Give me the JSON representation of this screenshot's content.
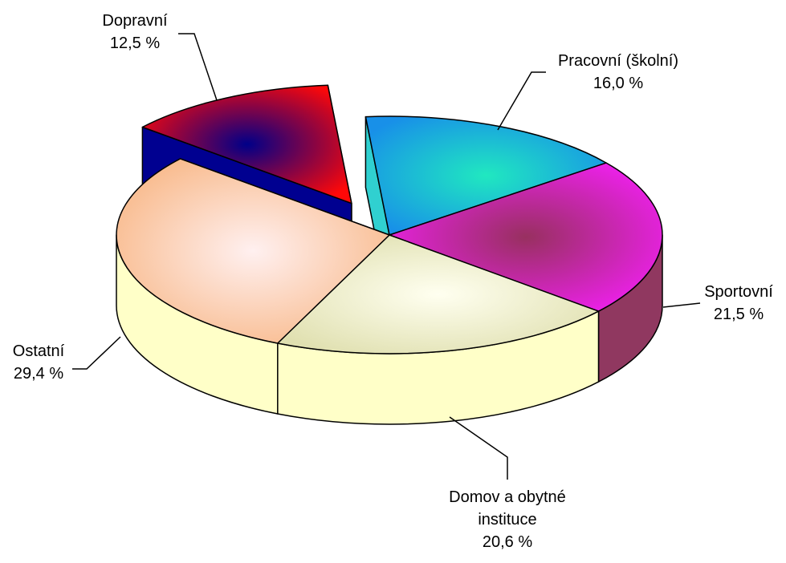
{
  "chart_data": {
    "type": "pie3d",
    "categories": [
      "Pracovní (školní)",
      "Sportovní",
      "Domov a obytné instituce",
      "Ostatní",
      "Dopravní"
    ],
    "values": [
      16.0,
      21.5,
      20.6,
      29.4,
      12.5
    ],
    "value_labels": [
      "16,0 %",
      "21,5 %",
      "20,6 %",
      "29,4 %",
      "12,5 %"
    ],
    "colors": [
      "#1890e8",
      "#f020f0",
      "#e0e0b0",
      "#f8b888",
      "#ff0808"
    ],
    "center_colors": [
      "#20e8c0",
      "#983060",
      "#fffff0",
      "#fff0f0",
      "#000088"
    ],
    "side_colors": [
      "#30d0d0",
      "#903860",
      "#ffffc8",
      "#ffffc8",
      "#000090"
    ],
    "exploded": [
      false,
      false,
      false,
      false,
      true
    ]
  }
}
